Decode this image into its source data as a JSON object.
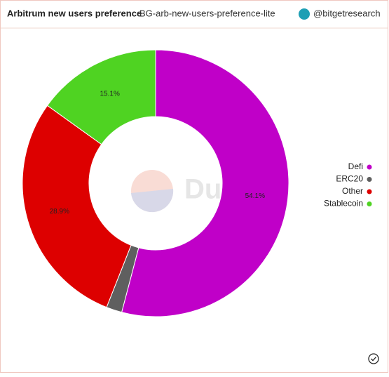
{
  "chart_data": {
    "type": "donut",
    "title": "Arbitrum new users preference",
    "subtitle": "BG-arb-new-users-preference-lite",
    "author": "@bitgetresearch",
    "watermark": "Dune",
    "categories": [
      "Defi",
      "ERC20",
      "Other",
      "Stablecoin"
    ],
    "values": [
      54.1,
      1.9,
      28.9,
      15.1
    ],
    "value_labels": [
      "54.1%",
      null,
      "28.9%",
      "15.1%"
    ],
    "colors": [
      "#c000c8",
      "#5f5f5f",
      "#dd0000",
      "#4fd322"
    ],
    "legend": "right"
  }
}
